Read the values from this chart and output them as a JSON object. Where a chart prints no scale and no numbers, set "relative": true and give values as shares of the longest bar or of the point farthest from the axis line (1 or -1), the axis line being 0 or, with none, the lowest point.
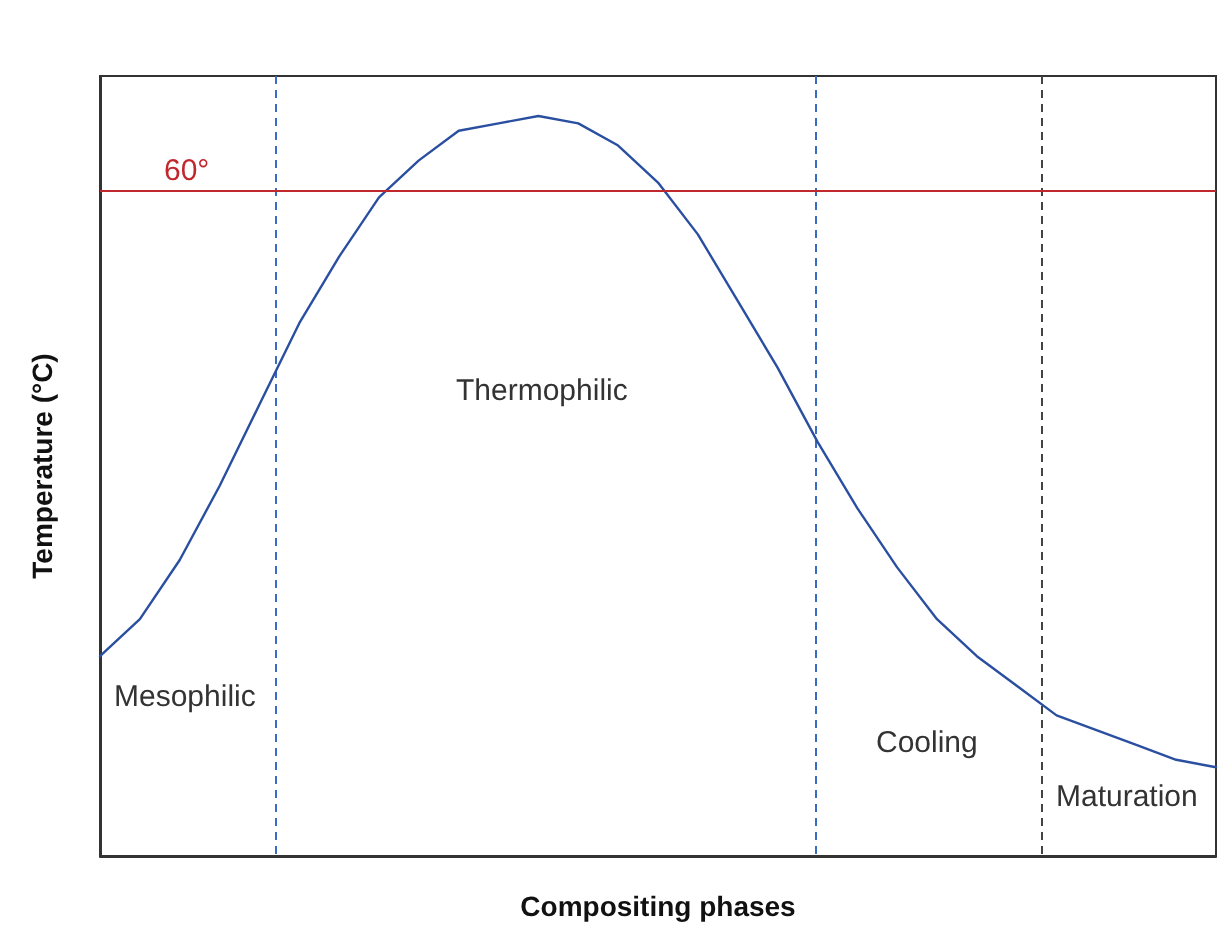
{
  "chart_data": {
    "type": "line",
    "relative": true,
    "xlabel": "Compositing phases",
    "ylabel": "Temperature (°C)",
    "categories": [
      null,
      null,
      null,
      null,
      null,
      null,
      null,
      null,
      null,
      null,
      null,
      null,
      null,
      null,
      null,
      null,
      null,
      null,
      null,
      null,
      null,
      null,
      null,
      null,
      null,
      null,
      null,
      null,
      null
    ],
    "series": [
      {
        "color": "#2b4fa0",
        "values": [
          0.27,
          0.32,
          0.4,
          0.5,
          0.61,
          0.72,
          0.81,
          0.89,
          0.94,
          0.98,
          0.99,
          1,
          0.99,
          0.96,
          0.91,
          0.84,
          0.75,
          0.66,
          0.56,
          0.47,
          0.39,
          0.32,
          0.27,
          0.23,
          0.19,
          0.17,
          0.15,
          0.13,
          0.12
        ]
      }
    ],
    "ref_lines": [
      {
        "axis": "y",
        "value": 0.895,
        "color": "#c0282d",
        "line_style": "solid"
      }
    ],
    "annotations": [
      "60°",
      "Mesophilic",
      "Thermophilic",
      "Cooling",
      "Maturation"
    ],
    "marker": "none",
    "line_style": "solid",
    "grid": false
  }
}
